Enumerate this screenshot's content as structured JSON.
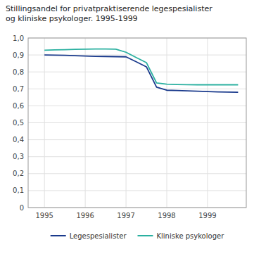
{
  "chart_data": {
    "type": "line",
    "title": "Stillingsandel for privatpraktiserende legespesialister\nog kliniske psykologer. 1995-1999",
    "x": [
      1995.0,
      1995.25,
      1995.5,
      1995.75,
      1996.0,
      1996.25,
      1996.5,
      1996.75,
      1997.0,
      1997.25,
      1997.5,
      1997.75,
      1998.0,
      1998.25,
      1998.5,
      1998.75,
      1999.0,
      1999.25,
      1999.5,
      1999.75
    ],
    "series": [
      {
        "name": "Legespesialister",
        "color": "#1a3a8c",
        "values": [
          0.9,
          0.899,
          0.898,
          0.896,
          0.894,
          0.892,
          0.891,
          0.89,
          0.889,
          0.86,
          0.83,
          0.71,
          0.692,
          0.69,
          0.688,
          0.686,
          0.684,
          0.682,
          0.681,
          0.68
        ]
      },
      {
        "name": "Kliniske psykologer",
        "color": "#2ab0a0",
        "values": [
          0.928,
          0.93,
          0.931,
          0.933,
          0.934,
          0.935,
          0.935,
          0.934,
          0.916,
          0.885,
          0.855,
          0.735,
          0.728,
          0.726,
          0.725,
          0.724,
          0.724,
          0.724,
          0.724,
          0.724
        ]
      }
    ],
    "xlim": [
      1994.6,
      1999.95
    ],
    "xticks": [
      1995,
      1996,
      1997,
      1998,
      1999
    ],
    "ylim": [
      0,
      1.0
    ],
    "yticks": [
      0,
      {
        "value": 0.1,
        "label": "0,1"
      },
      {
        "value": 0.2,
        "label": "0,2"
      },
      {
        "value": 0.3,
        "label": "0,3"
      },
      {
        "value": 0.4,
        "label": "0,4"
      },
      {
        "value": 0.5,
        "label": "0,5"
      },
      {
        "value": 0.6,
        "label": "0,6"
      },
      {
        "value": 0.7,
        "label": "0,7"
      },
      {
        "value": 0.8,
        "label": "0,8"
      },
      {
        "value": 0.9,
        "label": "0,9"
      },
      {
        "value": 1.0,
        "label": "1,0"
      }
    ],
    "grid": true,
    "legend": "bottom"
  }
}
